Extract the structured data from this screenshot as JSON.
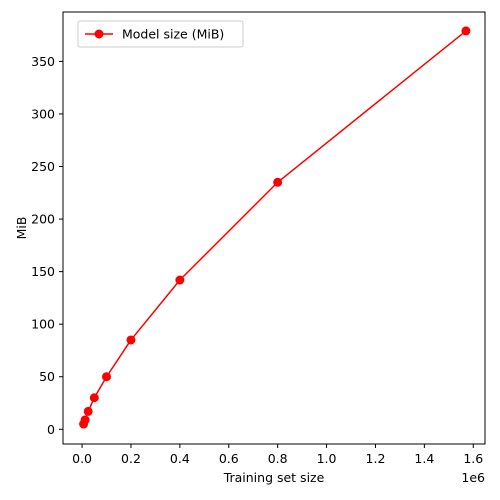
{
  "chart_data": {
    "type": "line",
    "xlabel": "Training set size",
    "ylabel": "MiB",
    "x_offset_text": "1e6",
    "xlim": [
      -0.078,
      1.648
    ],
    "ylim": [
      -14,
      397
    ],
    "xticks": [
      0.0,
      0.2,
      0.4,
      0.6,
      0.8,
      1.0,
      1.2,
      1.4,
      1.6
    ],
    "xtick_labels": [
      "0.0",
      "0.2",
      "0.4",
      "0.6",
      "0.8",
      "1.0",
      "1.2",
      "1.4",
      "1.6"
    ],
    "yticks": [
      0,
      50,
      100,
      150,
      200,
      250,
      300,
      350
    ],
    "ytick_labels": [
      "0",
      "50",
      "100",
      "150",
      "200",
      "250",
      "300",
      "350"
    ],
    "legend_position": "top-left",
    "series": [
      {
        "name": "Model size (MiB)",
        "color": "#ff0000",
        "marker": "circle",
        "x": [
          0.00625,
          0.0125,
          0.025,
          0.05,
          0.1,
          0.2,
          0.4,
          0.8,
          1.57
        ],
        "y": [
          5,
          9,
          17,
          30,
          50,
          85,
          142,
          235,
          379
        ]
      }
    ]
  }
}
